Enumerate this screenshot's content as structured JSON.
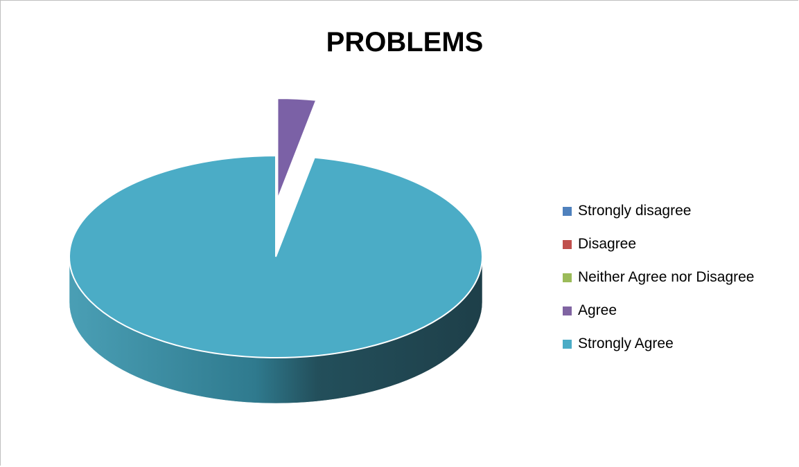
{
  "chart_data": {
    "type": "pie",
    "title": "PROBLEMS",
    "categories": [
      "Strongly disagree",
      "Disagree",
      "Neither Agree nor Disagree",
      "Agree",
      "Strongly Agree"
    ],
    "values": [
      0,
      0,
      0,
      3,
      97
    ],
    "colors": [
      "#4F81BD",
      "#C0504D",
      "#9BBB59",
      "#8064A2",
      "#4BACC6"
    ],
    "exploded": "Agree",
    "style": "3d",
    "legend_position": "right"
  }
}
